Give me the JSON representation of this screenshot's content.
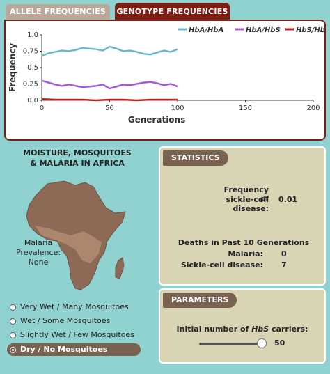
{
  "tabs": [
    {
      "label": "ALLELE FREQUENCIES",
      "active": false
    },
    {
      "label": "GENOTYPE FREQUENCIES",
      "active": true
    }
  ],
  "chart_data": {
    "type": "line",
    "xlabel": "Generations",
    "ylabel": "Frequency",
    "xlim": [
      0,
      200
    ],
    "ylim": [
      0,
      1.0
    ],
    "xticks": [
      "0",
      "50",
      "100",
      "150",
      "200"
    ],
    "yticks": [
      "0.0",
      "0.25",
      "0.5",
      "0.75",
      "1.0"
    ],
    "legend_position": "top-right",
    "series": [
      {
        "name": "HbA/HbA",
        "color": "#6ab9c9",
        "x": [
          0,
          5,
          10,
          15,
          20,
          25,
          30,
          35,
          40,
          45,
          50,
          55,
          60,
          65,
          70,
          75,
          80,
          85,
          90,
          95,
          100
        ],
        "y": [
          0.68,
          0.72,
          0.74,
          0.76,
          0.75,
          0.77,
          0.8,
          0.79,
          0.78,
          0.76,
          0.82,
          0.79,
          0.75,
          0.76,
          0.74,
          0.71,
          0.7,
          0.73,
          0.76,
          0.74,
          0.78
        ]
      },
      {
        "name": "HbA/HbS",
        "color": "#a25cd6",
        "x": [
          0,
          5,
          10,
          15,
          20,
          25,
          30,
          35,
          40,
          45,
          50,
          55,
          60,
          65,
          70,
          75,
          80,
          85,
          90,
          95,
          100
        ],
        "y": [
          0.3,
          0.27,
          0.24,
          0.22,
          0.24,
          0.22,
          0.2,
          0.21,
          0.22,
          0.24,
          0.18,
          0.21,
          0.24,
          0.23,
          0.25,
          0.27,
          0.28,
          0.26,
          0.23,
          0.25,
          0.21
        ]
      },
      {
        "name": "HbS/HbS",
        "color": "#c0231d",
        "x": [
          0,
          10,
          20,
          30,
          40,
          50,
          60,
          70,
          80,
          90,
          100
        ],
        "y": [
          0.02,
          0.01,
          0.01,
          0.01,
          0.0,
          0.01,
          0.01,
          0.0,
          0.01,
          0.01,
          0.01
        ]
      }
    ]
  },
  "left": {
    "title_line1": "MOISTURE, MOSQUITOES",
    "title_line2": "& MALARIA IN AFRICA",
    "prevalence_label": "Malaria Prevalence:",
    "prevalence_value": "None",
    "options": [
      {
        "label": "Very Wet / Many Mosquitoes",
        "selected": false
      },
      {
        "label": "Wet / Some Mosquitoes",
        "selected": false
      },
      {
        "label": "Slightly Wet / Few Mosquitoes",
        "selected": false
      },
      {
        "label": "Dry / No Mosquitoes",
        "selected": true
      }
    ]
  },
  "statistics": {
    "header": "STATISTICS",
    "freq_label_line1": "Frequency of",
    "freq_label_line2": "sickle-cell disease:",
    "freq_value": "0.01",
    "deaths_title": "Deaths in Past 10 Generations",
    "malaria_label": "Malaria:",
    "malaria_value": "0",
    "sickle_label": "Sickle-cell disease:",
    "sickle_value": "7"
  },
  "parameters": {
    "header": "PARAMETERS",
    "carriers_label_pre": "Initial number of ",
    "carriers_label_em": "HbS",
    "carriers_label_post": " carriers:",
    "carriers_value": "50",
    "slider_fraction": 0.98
  },
  "colors": {
    "accent": "#7b1f14",
    "panel": "#d8d4b4",
    "header_brown": "#7a6250",
    "background": "#8fd2cf"
  }
}
